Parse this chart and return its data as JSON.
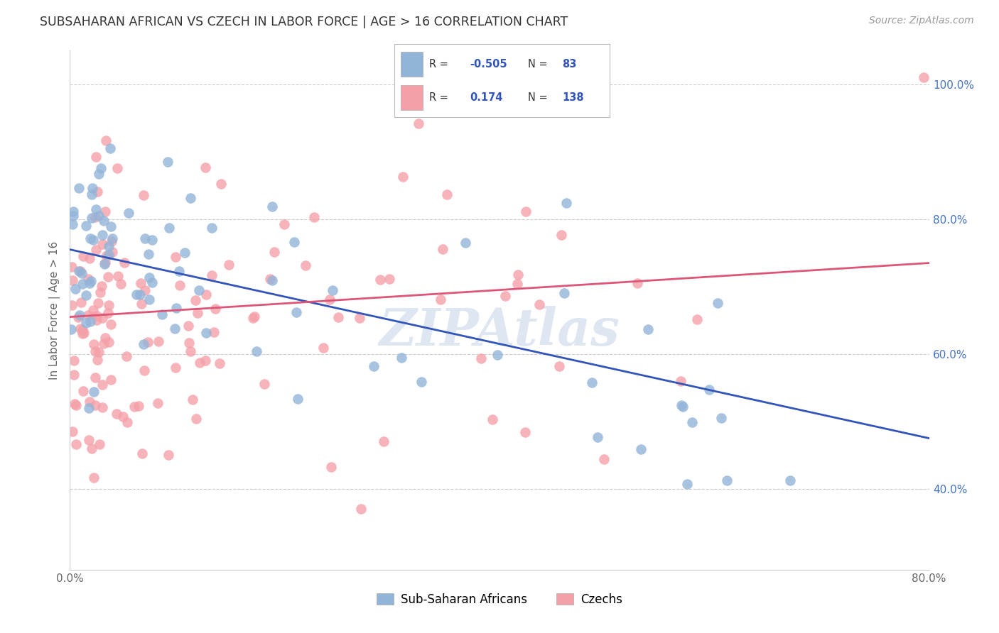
{
  "title": "SUBSAHARAN AFRICAN VS CZECH IN LABOR FORCE | AGE > 16 CORRELATION CHART",
  "source": "Source: ZipAtlas.com",
  "ylabel": "In Labor Force | Age > 16",
  "xlim": [
    0.0,
    0.8
  ],
  "ylim": [
    0.28,
    1.05
  ],
  "blue_R": -0.505,
  "blue_N": 83,
  "pink_R": 0.174,
  "pink_N": 138,
  "blue_color": "#92b4d9",
  "pink_color": "#f4a0a8",
  "blue_line_color": "#3355bb",
  "pink_line_color": "#dd5577",
  "blue_line_x0": 0.0,
  "blue_line_y0": 0.755,
  "blue_line_x1": 0.8,
  "blue_line_y1": 0.475,
  "pink_line_x0": 0.0,
  "pink_line_y0": 0.655,
  "pink_line_x1": 0.8,
  "pink_line_y1": 0.735,
  "ytick_labels": [
    "40.0%",
    "60.0%",
    "80.0%",
    "100.0%"
  ],
  "ytick_values": [
    0.4,
    0.6,
    0.8,
    1.0
  ],
  "xtick_values": [
    0.0,
    0.1,
    0.2,
    0.3,
    0.4,
    0.5,
    0.6,
    0.7,
    0.8
  ],
  "legend_labels": [
    "Sub-Saharan Africans",
    "Czechs"
  ],
  "legend_R_values": [
    "-0.505",
    "0.174"
  ],
  "legend_N_values": [
    "83",
    "138"
  ],
  "watermark_text": "ZIPAtlas",
  "watermark_color": "#c8d8e8",
  "watermark_alpha": 0.6
}
